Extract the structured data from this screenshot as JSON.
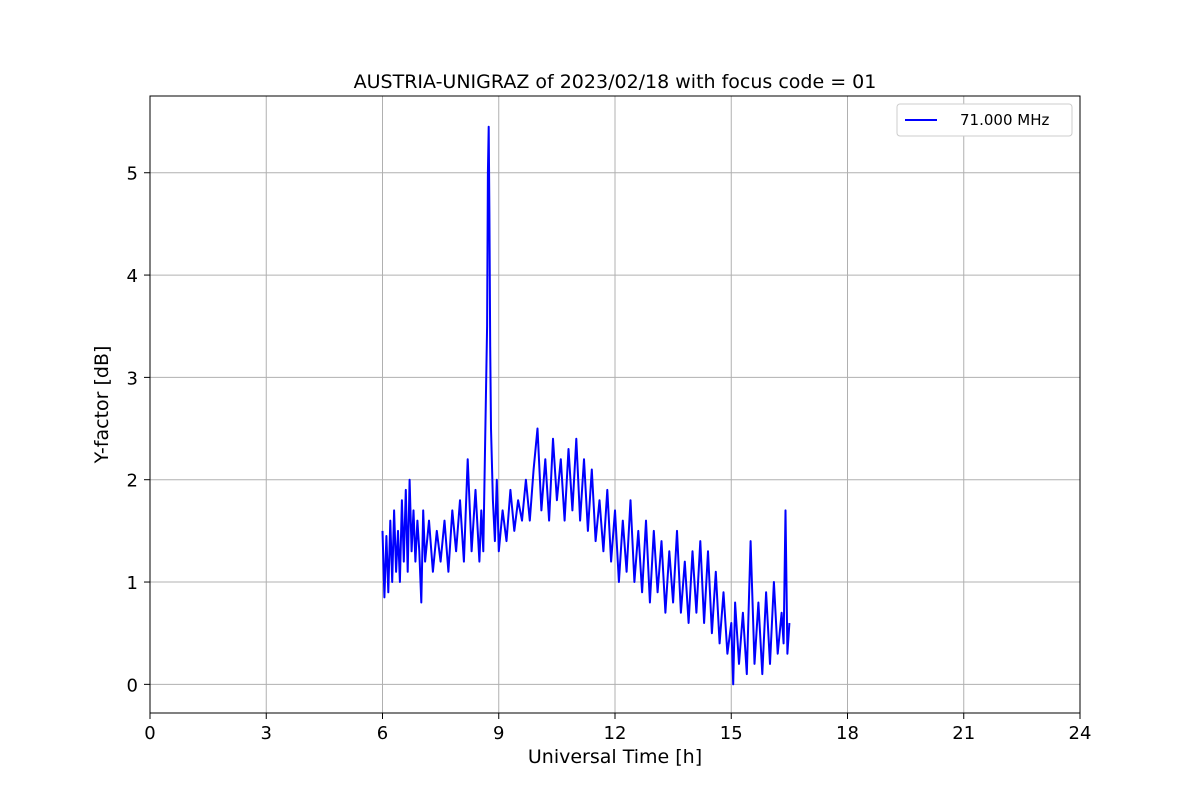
{
  "chart_data": {
    "type": "line",
    "title": "AUSTRIA-UNIGRAZ of 2023/02/18 with focus code = 01",
    "xlabel": "Universal Time [h]",
    "ylabel": "Y-factor [dB]",
    "xlim": [
      0,
      24
    ],
    "ylim": [
      -0.28,
      5.75
    ],
    "xticks": [
      0,
      3,
      6,
      9,
      12,
      15,
      18,
      21,
      24
    ],
    "yticks": [
      0,
      1,
      2,
      3,
      4,
      5
    ],
    "grid": true,
    "legend_position": "top-right",
    "series": [
      {
        "name": "71.000 MHz",
        "color": "#0000ff",
        "x": [
          6.0,
          6.05,
          6.1,
          6.15,
          6.2,
          6.25,
          6.3,
          6.35,
          6.4,
          6.45,
          6.5,
          6.55,
          6.6,
          6.65,
          6.7,
          6.75,
          6.8,
          6.85,
          6.9,
          6.95,
          7.0,
          7.05,
          7.1,
          7.2,
          7.3,
          7.4,
          7.5,
          7.6,
          7.7,
          7.8,
          7.9,
          8.0,
          8.1,
          8.2,
          8.3,
          8.4,
          8.5,
          8.55,
          8.6,
          8.65,
          8.7,
          8.72,
          8.74,
          8.76,
          8.78,
          8.8,
          8.85,
          8.9,
          8.95,
          9.0,
          9.1,
          9.2,
          9.3,
          9.4,
          9.5,
          9.6,
          9.7,
          9.8,
          9.9,
          10.0,
          10.1,
          10.2,
          10.3,
          10.4,
          10.5,
          10.6,
          10.7,
          10.8,
          10.9,
          11.0,
          11.1,
          11.2,
          11.3,
          11.4,
          11.5,
          11.6,
          11.7,
          11.8,
          11.9,
          12.0,
          12.1,
          12.2,
          12.3,
          12.4,
          12.5,
          12.6,
          12.7,
          12.8,
          12.9,
          13.0,
          13.1,
          13.2,
          13.3,
          13.4,
          13.5,
          13.6,
          13.7,
          13.8,
          13.9,
          14.0,
          14.1,
          14.2,
          14.3,
          14.4,
          14.5,
          14.6,
          14.7,
          14.8,
          14.9,
          15.0,
          15.05,
          15.1,
          15.2,
          15.3,
          15.4,
          15.5,
          15.6,
          15.7,
          15.8,
          15.9,
          16.0,
          16.1,
          16.2,
          16.3,
          16.35,
          16.4,
          16.45,
          16.5
        ],
        "y": [
          1.5,
          0.85,
          1.45,
          0.9,
          1.6,
          1.0,
          1.7,
          1.1,
          1.5,
          1.0,
          1.8,
          1.2,
          1.9,
          1.1,
          2.0,
          1.3,
          1.7,
          1.2,
          1.6,
          1.3,
          0.8,
          1.7,
          1.2,
          1.6,
          1.1,
          1.5,
          1.2,
          1.6,
          1.1,
          1.7,
          1.3,
          1.8,
          1.2,
          2.2,
          1.3,
          1.9,
          1.2,
          1.7,
          1.3,
          2.4,
          3.5,
          5.0,
          5.45,
          4.6,
          3.3,
          2.5,
          1.8,
          1.4,
          2.0,
          1.3,
          1.7,
          1.4,
          1.9,
          1.5,
          1.8,
          1.6,
          2.0,
          1.6,
          2.1,
          2.5,
          1.7,
          2.2,
          1.6,
          2.4,
          1.8,
          2.2,
          1.6,
          2.3,
          1.7,
          2.4,
          1.6,
          2.2,
          1.5,
          2.1,
          1.4,
          1.8,
          1.3,
          1.9,
          1.2,
          1.7,
          1.0,
          1.6,
          1.1,
          1.8,
          1.0,
          1.5,
          0.9,
          1.6,
          0.8,
          1.5,
          0.9,
          1.4,
          0.7,
          1.3,
          0.8,
          1.5,
          0.7,
          1.2,
          0.6,
          1.3,
          0.7,
          1.4,
          0.6,
          1.3,
          0.5,
          1.1,
          0.4,
          0.9,
          0.3,
          0.6,
          0.0,
          0.8,
          0.2,
          0.7,
          0.1,
          1.4,
          0.2,
          0.8,
          0.1,
          0.9,
          0.2,
          1.0,
          0.3,
          0.7,
          0.4,
          1.7,
          0.3,
          0.6
        ]
      }
    ]
  }
}
